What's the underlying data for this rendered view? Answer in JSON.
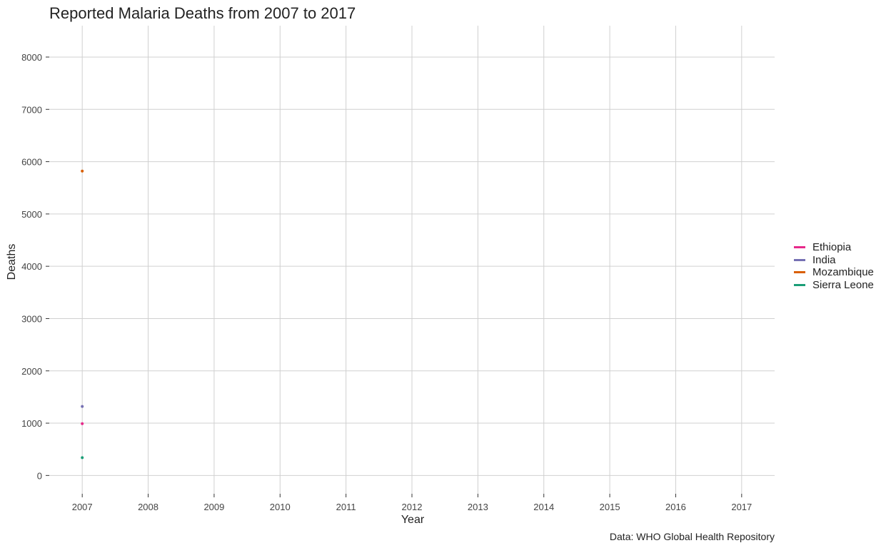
{
  "chart_data": {
    "type": "line",
    "title": "Reported Malaria Deaths from 2007 to 2017",
    "xlabel": "Year",
    "ylabel": "Deaths",
    "caption": "Data: WHO Global Health Repository",
    "x_ticks": [
      2007,
      2008,
      2009,
      2010,
      2011,
      2012,
      2013,
      2014,
      2015,
      2016,
      2017
    ],
    "y_ticks": [
      0,
      1000,
      2000,
      3000,
      4000,
      5000,
      6000,
      7000,
      8000
    ],
    "xlim": [
      2006.5,
      2017.5
    ],
    "ylim": [
      -350,
      8600
    ],
    "grid": true,
    "legend_position": "right",
    "series": [
      {
        "name": "Ethiopia",
        "color": "#e7298a",
        "points": [
          {
            "x": 2007,
            "y": 990
          }
        ]
      },
      {
        "name": "India",
        "color": "#7570b3",
        "points": [
          {
            "x": 2007,
            "y": 1320
          }
        ]
      },
      {
        "name": "Mozambique",
        "color": "#d95f02",
        "points": [
          {
            "x": 2007,
            "y": 5820
          }
        ]
      },
      {
        "name": "Sierra Leone",
        "color": "#1b9e77",
        "points": [
          {
            "x": 2007,
            "y": 340
          }
        ]
      }
    ]
  }
}
